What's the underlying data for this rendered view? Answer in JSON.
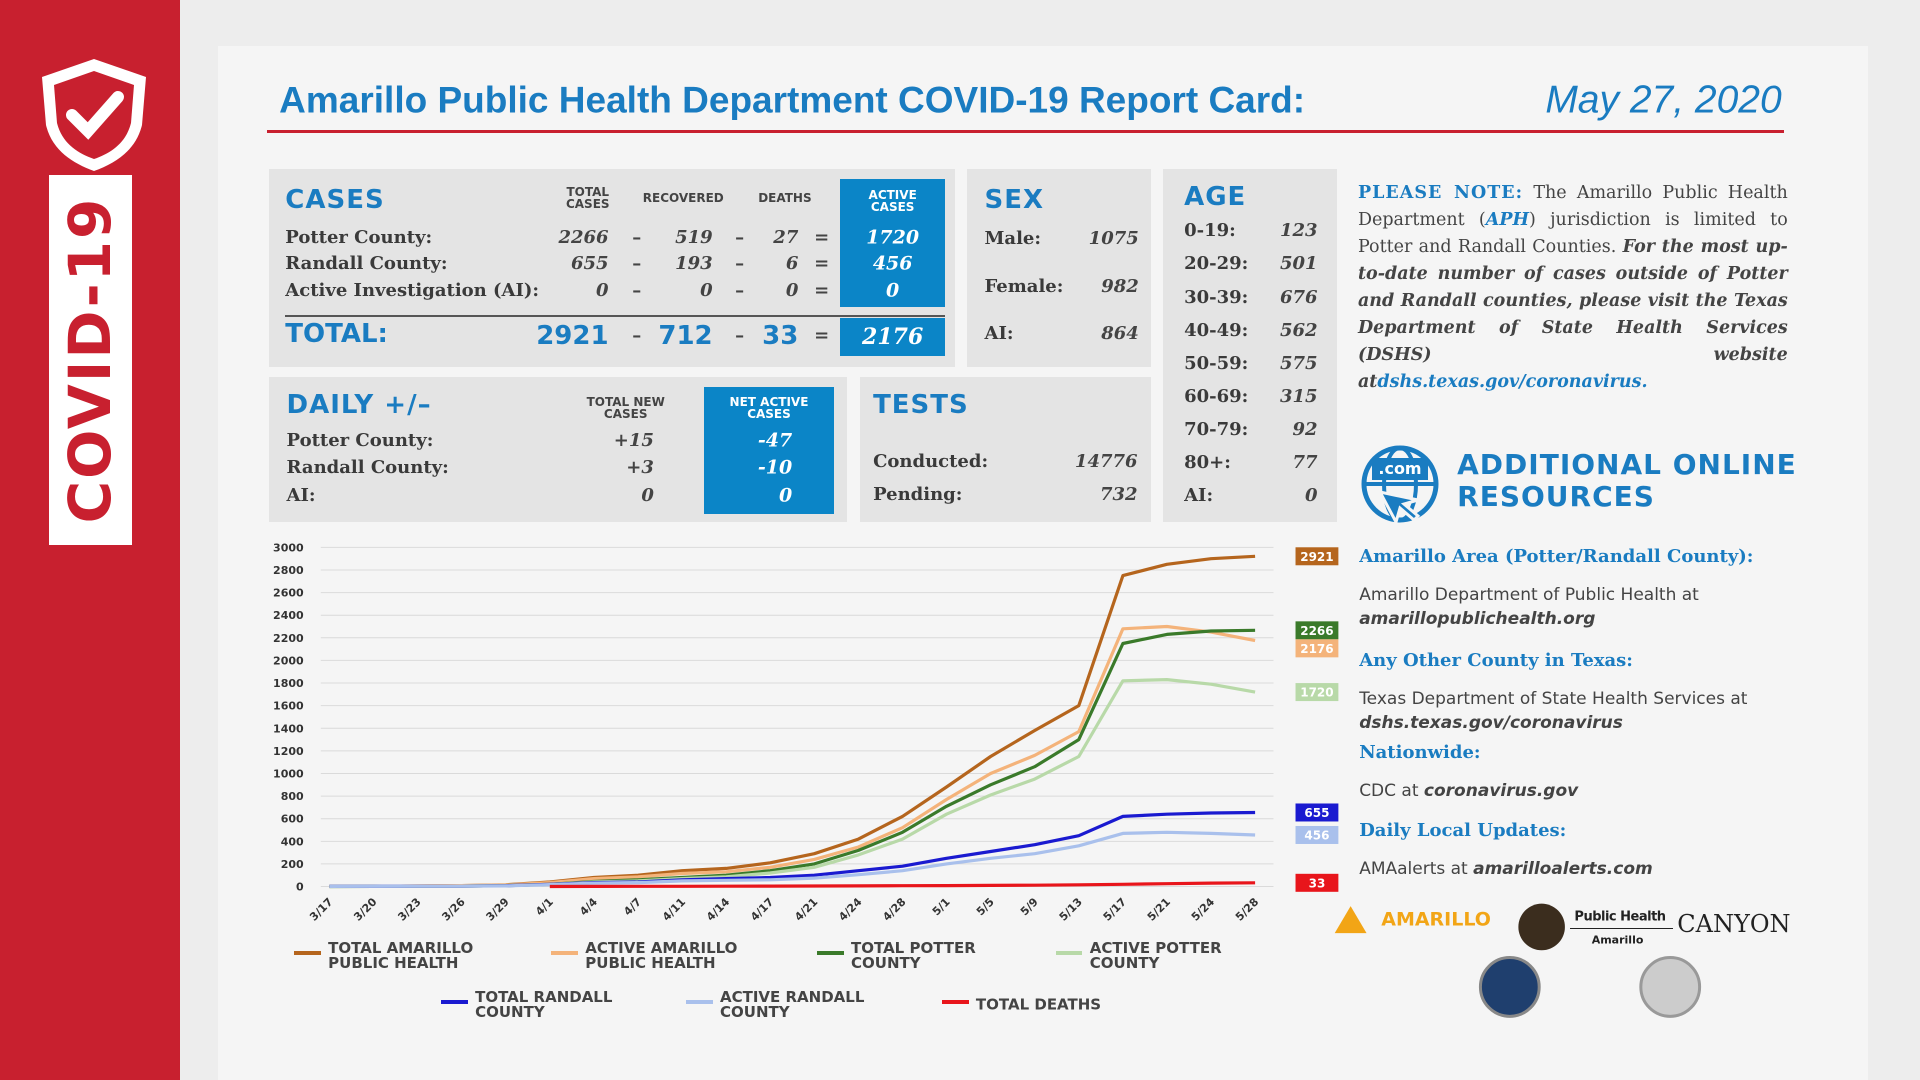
{
  "sidebar": {
    "label": "COVID-19"
  },
  "header": {
    "title": "Amarillo Public Health Department COVID-19 Report Card:",
    "date": "May 27, 2020"
  },
  "cases": {
    "title": "CASES",
    "columns": [
      "TOTAL CASES",
      "RECOVERED",
      "DEATHS",
      "ACTIVE CASES"
    ],
    "operators": [
      "–",
      "–",
      "="
    ],
    "rows": [
      {
        "label": "Potter County:",
        "values": [
          2266,
          519,
          27,
          1720
        ]
      },
      {
        "label": "Randall County:",
        "values": [
          655,
          193,
          6,
          456
        ]
      },
      {
        "label": "Active Investigation (AI):",
        "values": [
          0,
          0,
          0,
          0
        ]
      }
    ],
    "total": {
      "label": "TOTAL:",
      "values": [
        2921,
        712,
        33,
        2176
      ]
    }
  },
  "sex": {
    "title": "SEX",
    "rows": [
      {
        "label": "Male:",
        "value": 1075
      },
      {
        "label": "Female:",
        "value": 982
      },
      {
        "label": "AI:",
        "value": 864
      }
    ]
  },
  "age": {
    "title": "AGE",
    "rows": [
      {
        "label": "0-19:",
        "value": 123
      },
      {
        "label": "20-29:",
        "value": 501
      },
      {
        "label": "30-39:",
        "value": 676
      },
      {
        "label": "40-49:",
        "value": 562
      },
      {
        "label": "50-59:",
        "value": 575
      },
      {
        "label": "60-69:",
        "value": 315
      },
      {
        "label": "70-79:",
        "value": 92
      },
      {
        "label": "80+:",
        "value": 77
      },
      {
        "label": "AI:",
        "value": 0
      }
    ]
  },
  "daily": {
    "title": "DAILY +/–",
    "columns": [
      "TOTAL NEW CASES",
      "NET ACTIVE CASES"
    ],
    "rows": [
      {
        "label": "Potter County:",
        "values": [
          "+15",
          "-47"
        ]
      },
      {
        "label": "Randall County:",
        "values": [
          "+3",
          "-10"
        ]
      },
      {
        "label": "AI:",
        "values": [
          "0",
          "0"
        ]
      }
    ]
  },
  "tests": {
    "title": "TESTS",
    "rows": [
      {
        "label": "Conducted:",
        "value": 14776
      },
      {
        "label": "Pending:",
        "value": 732
      }
    ]
  },
  "note": {
    "lead": "PLEASE NOTE:",
    "text1": "The Amarillo Public Health Department (",
    "abbr": "APH",
    "text2": ") jurisdiction is limited to Potter and Randall Counties.",
    "emphasis": "For the most up-to-date number of cases outside of Potter and Randall counties, please visit the Texas Department of State Health Services (DSHS) website at",
    "link": "dshs.texas.gov/coronavirus."
  },
  "resources": {
    "icon": ".com",
    "title": "ADDITIONAL ONLINE RESOURCES",
    "items": [
      {
        "heading": "Amarillo Area (Potter/Randall County):",
        "text": "Amarillo Department of Public Health at",
        "link": "amarillopublichealth.org"
      },
      {
        "heading": "Any Other County in Texas:",
        "text": "Texas Department of State Health Services at",
        "link": "dshs.texas.gov/coronavirus"
      },
      {
        "heading": "Nationwide:",
        "text": "CDC at",
        "link": "coronavirus.gov"
      },
      {
        "heading": "Daily Local Updates:",
        "text": "AMAalerts at",
        "link": "amarilloalerts.com"
      }
    ]
  },
  "logos": {
    "amarillo": "AMARILLO",
    "public_health": "Public Health",
    "public_health_city": "Amarillo",
    "canyon": "CANYON"
  },
  "chart_data": {
    "type": "line",
    "categories": [
      "3/17",
      "3/20",
      "3/23",
      "3/26",
      "3/29",
      "4/1",
      "4/4",
      "4/7",
      "4/11",
      "4/14",
      "4/17",
      "4/21",
      "4/24",
      "4/28",
      "5/1",
      "5/5",
      "5/9",
      "5/13",
      "5/17",
      "5/21",
      "5/24",
      "5/28"
    ],
    "series": [
      {
        "name": "TOTAL AMARILLO PUBLIC HEALTH",
        "color": "#b5651d",
        "values": [
          1,
          3,
          5,
          8,
          15,
          40,
          80,
          100,
          140,
          160,
          210,
          290,
          420,
          620,
          880,
          1150,
          1380,
          1600,
          2750,
          2850,
          2900,
          2921
        ]
      },
      {
        "name": "ACTIVE AMARILLO PUBLIC HEALTH",
        "color": "#f4b37a",
        "values": [
          1,
          3,
          5,
          8,
          14,
          35,
          70,
          85,
          115,
          130,
          170,
          240,
          350,
          520,
          770,
          1000,
          1160,
          1370,
          2280,
          2300,
          2250,
          2176
        ]
      },
      {
        "name": "TOTAL POTTER COUNTY",
        "color": "#3a7a2a",
        "values": [
          0,
          1,
          2,
          4,
          8,
          20,
          45,
          60,
          80,
          100,
          140,
          200,
          320,
          480,
          710,
          900,
          1060,
          1300,
          2150,
          2230,
          2260,
          2266
        ]
      },
      {
        "name": "ACTIVE POTTER COUNTY",
        "color": "#b8d9a8",
        "values": [
          0,
          1,
          2,
          4,
          7,
          18,
          40,
          50,
          70,
          85,
          120,
          170,
          280,
          420,
          640,
          810,
          950,
          1150,
          1820,
          1830,
          1790,
          1720
        ]
      },
      {
        "name": "TOTAL RANDALL COUNTY",
        "color": "#1a1ad0",
        "values": [
          1,
          2,
          3,
          4,
          7,
          20,
          35,
          40,
          60,
          70,
          80,
          100,
          140,
          180,
          250,
          310,
          370,
          450,
          620,
          640,
          650,
          655
        ]
      },
      {
        "name": "ACTIVE RANDALL COUNTY",
        "color": "#a9c0ec",
        "values": [
          1,
          2,
          3,
          4,
          6,
          17,
          30,
          35,
          50,
          55,
          60,
          75,
          105,
          140,
          200,
          250,
          290,
          360,
          470,
          480,
          470,
          456
        ]
      },
      {
        "name": "TOTAL DEATHS",
        "color": "#e8151b",
        "values": [
          null,
          null,
          null,
          null,
          null,
          0,
          1,
          2,
          2,
          3,
          4,
          5,
          6,
          7,
          8,
          10,
          12,
          15,
          20,
          25,
          30,
          33
        ]
      }
    ],
    "ylim": [
      0,
      3000
    ],
    "yticks": [
      0,
      200,
      400,
      600,
      800,
      1000,
      1200,
      1400,
      1600,
      1800,
      2000,
      2200,
      2400,
      2600,
      2800,
      3000
    ],
    "grid": true
  }
}
